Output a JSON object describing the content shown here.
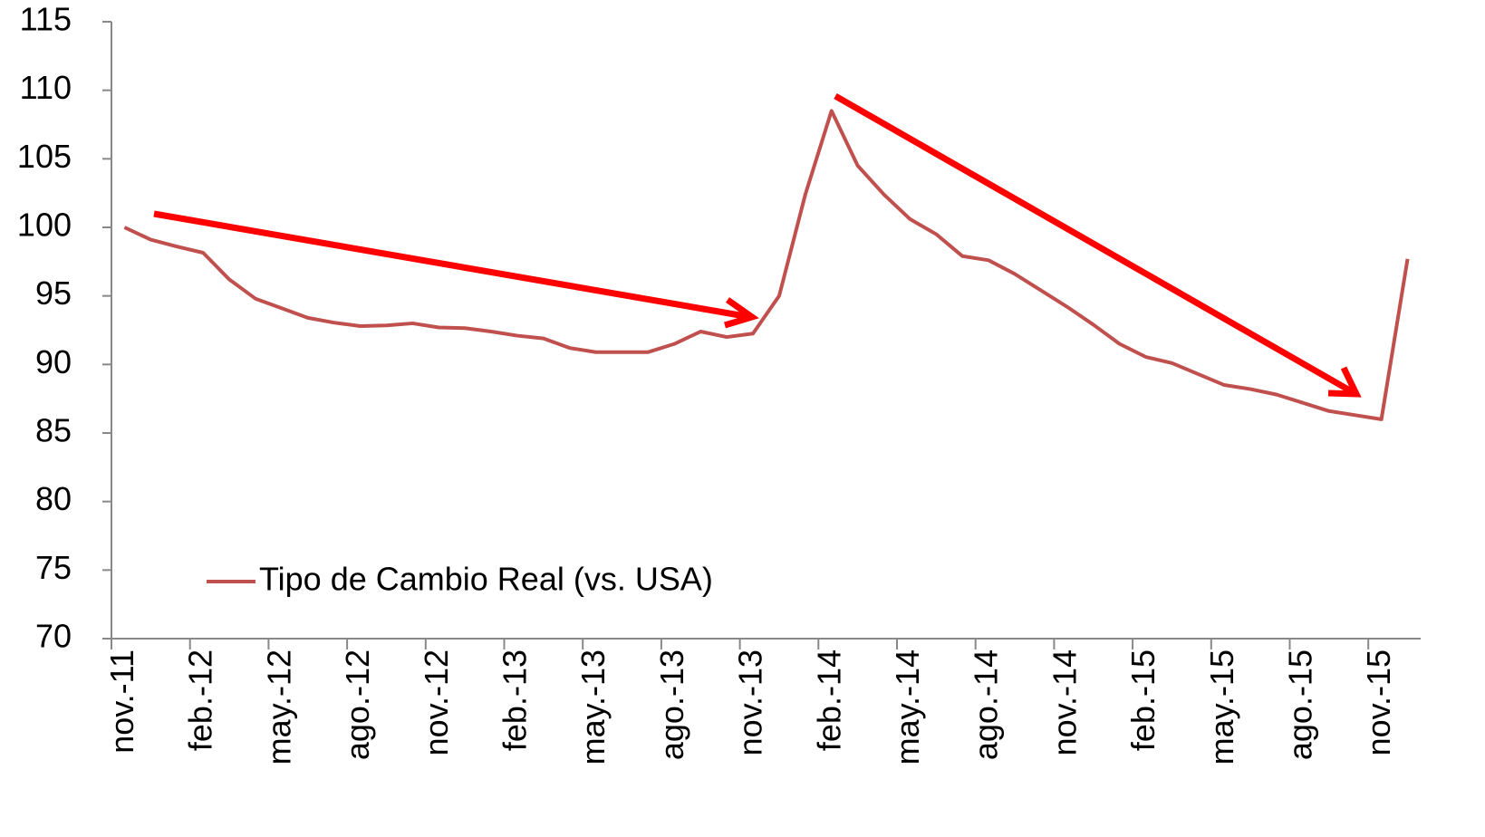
{
  "chart_data": {
    "type": "line",
    "categories": [
      "nov.-11",
      null,
      null,
      "feb.-12",
      null,
      null,
      "may.-12",
      null,
      null,
      "ago.-12",
      null,
      null,
      "nov.-12",
      null,
      null,
      "feb.-13",
      null,
      null,
      "may.-13",
      null,
      null,
      "ago.-13",
      null,
      null,
      "nov.-13",
      null,
      null,
      "feb.-14",
      null,
      null,
      "may.-14",
      null,
      null,
      "ago.-14",
      null,
      null,
      "nov.-14",
      null,
      null,
      "feb.-15",
      null,
      null,
      "may.-15",
      null,
      null,
      "ago.-15",
      null,
      null,
      "nov.-15",
      null
    ],
    "series": [
      {
        "name": "Tipo de Cambio Real (vs. USA)",
        "color": "#c0504d",
        "values": [
          100.0,
          99.1,
          98.6,
          98.15,
          96.2,
          94.8,
          94.1,
          93.4,
          93.05,
          92.8,
          92.85,
          93.0,
          92.7,
          92.65,
          92.4,
          92.1,
          91.9,
          91.2,
          90.9,
          90.9,
          90.9,
          91.5,
          92.4,
          92.0,
          92.25,
          95.0,
          102.4,
          108.5,
          104.5,
          102.4,
          100.6,
          99.5,
          97.9,
          97.6,
          96.6,
          95.4,
          94.2,
          92.9,
          91.5,
          90.55,
          90.1,
          89.3,
          88.5,
          88.2,
          87.8,
          87.2,
          86.6,
          86.3,
          86.0,
          97.7
        ]
      }
    ],
    "ylim": [
      70,
      115
    ],
    "yticks": [
      70,
      75,
      80,
      85,
      90,
      95,
      100,
      105,
      110,
      115
    ],
    "grid": false,
    "legend": "lower left"
  }
}
